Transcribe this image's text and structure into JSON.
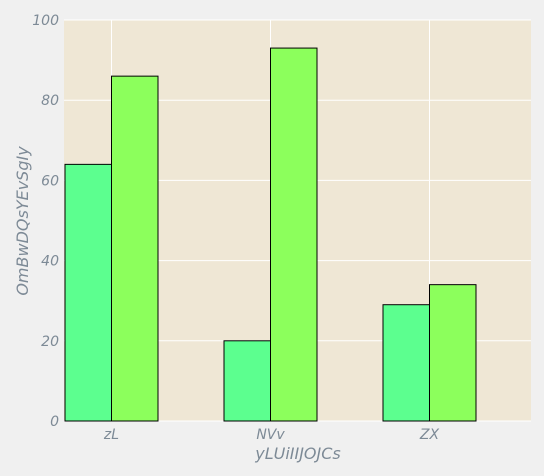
{
  "chart_data": {
    "type": "bar",
    "title": "",
    "xlabel": "yLUiIIJOJCs",
    "ylabel": "OmBwDQsYEvSgIy",
    "categories": [
      "zL",
      "NVv",
      "ZX"
    ],
    "series": [
      {
        "values": [
          64,
          20,
          29
        ],
        "color": "#5cff8f"
      },
      {
        "values": [
          86,
          93,
          34
        ],
        "color": "#8cff5c"
      }
    ],
    "ylim": [
      0,
      100
    ],
    "yticks": [
      0,
      20,
      40,
      60,
      80,
      100
    ],
    "grid": true,
    "legend": "none",
    "colors": {
      "plot_background": "#efe7d5",
      "figure_background": "#f0f0f0",
      "grid": "#ffffff",
      "text": "#7d8a96",
      "bar_edge": "#000000"
    }
  }
}
